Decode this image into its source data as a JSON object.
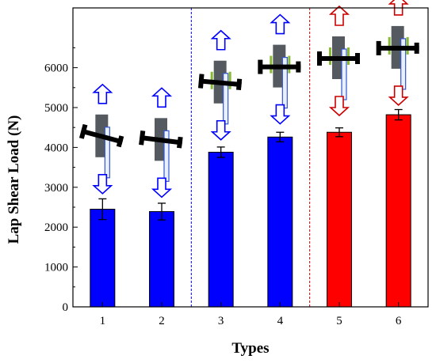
{
  "chart_data": {
    "type": "bar",
    "categories": [
      "1",
      "2",
      "3",
      "4",
      "5",
      "6"
    ],
    "values": [
      2450,
      2390,
      3880,
      4260,
      4380,
      4820
    ],
    "errors": [
      260,
      210,
      130,
      120,
      110,
      130
    ],
    "bar_colors": [
      "#0000ff",
      "#0000ff",
      "#0000ff",
      "#0000ff",
      "#ff0000",
      "#ff0000"
    ],
    "xlabel": "Types",
    "ylabel": "Lap Shear Load (N)",
    "ylim": [
      0,
      7500
    ],
    "yticks": [
      0,
      1000,
      2000,
      3000,
      4000,
      5000,
      6000
    ],
    "grid": false,
    "group_dividers": [
      {
        "after_category": "2",
        "color": "#0000ff"
      },
      {
        "after_category": "4",
        "color": "#cc0000"
      }
    ],
    "specimen_icons": [
      {
        "category": "1",
        "tilt_deg": 15,
        "arrow_color": "#0000ff",
        "arrow_fill": "#ffffff",
        "bolt_y": 4270
      },
      {
        "category": "2",
        "tilt_deg": 7,
        "arrow_color": "#0000ff",
        "arrow_fill": "#ffffff",
        "bolt_y": 4180
      },
      {
        "category": "3",
        "tilt_deg": 5,
        "arrow_color": "#0000ff",
        "arrow_fill": "#ffffff",
        "bolt_y": 5620
      },
      {
        "category": "4",
        "tilt_deg": 0,
        "arrow_color": "#0000ff",
        "arrow_fill": "#ffffff",
        "bolt_y": 6020
      },
      {
        "category": "5",
        "tilt_deg": 0,
        "arrow_color": "#cc0000",
        "arrow_fill": "#ffffff",
        "bolt_y": 6230
      },
      {
        "category": "6",
        "tilt_deg": 0,
        "arrow_color": "#cc0000",
        "arrow_fill": "#ffffff",
        "bolt_y": 6490
      }
    ]
  }
}
